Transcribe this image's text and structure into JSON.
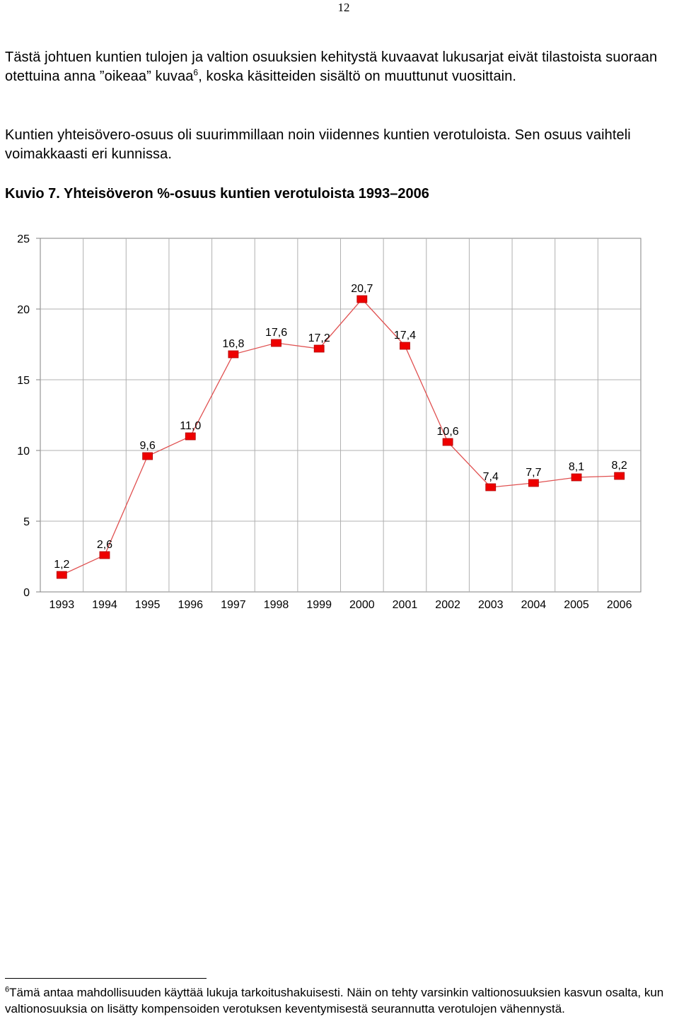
{
  "page_number": "12",
  "paragraph1": {
    "before_sup": "Tästä johtuen kuntien tulojen ja valtion osuuksien kehitystä kuvaavat lukusarjat eivät tilastoista suoraan otettuina anna ”oikeaa” kuvaa",
    "sup": "6",
    "after_sup": ", koska käsitteiden sisältö on muuttunut vuosittain."
  },
  "paragraph2": "Kuntien yhteisövero-osuus oli suurimmillaan noin viidennes kuntien verotuloista. Sen osuus vaihteli voimakkaasti eri kunnissa.",
  "caption": "Kuvio 7. Yhteisöveron %-osuus kuntien verotuloista 1993–2006",
  "chart_data": {
    "type": "line",
    "x": [
      "1993",
      "1994",
      "1995",
      "1996",
      "1997",
      "1998",
      "1999",
      "2000",
      "2001",
      "2002",
      "2003",
      "2004",
      "2005",
      "2006"
    ],
    "series": [
      {
        "values": [
          1.2,
          2.6,
          9.6,
          11.0,
          16.8,
          17.6,
          17.2,
          20.7,
          17.4,
          10.6,
          7.4,
          7.7,
          8.1,
          8.2
        ],
        "labels": [
          "1,2",
          "2,6",
          "9,6",
          "11,0",
          "16,8",
          "17,6",
          "17,2",
          "20,7",
          "17,4",
          "10,6",
          "7,4",
          "7,7",
          "8,1",
          "8,2"
        ],
        "color": "#ee0000"
      }
    ],
    "yticks": [
      "0",
      "5",
      "10",
      "15",
      "20",
      "25"
    ],
    "ylim": [
      0,
      25
    ],
    "grid": true,
    "line_color": "#e05050",
    "marker": "square"
  },
  "footnote": {
    "sup": "6",
    "text": "Tämä antaa mahdollisuuden käyttää lukuja tarkoitushakuisesti. Näin on tehty varsinkin valtionosuuksien kasvun osalta, kun valtionosuuksia on lisätty kompensoiden verotuksen keventymisestä seurannutta verotulojen vähennystä."
  }
}
